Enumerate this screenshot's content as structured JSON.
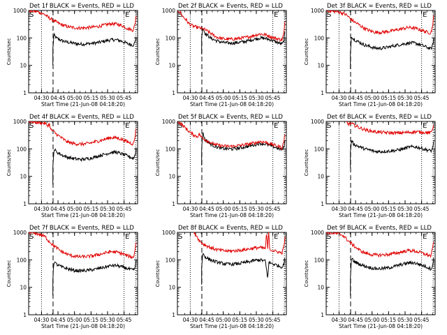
{
  "figure": {
    "xlabel": "Start Time (21-Jun-08 04:18:20)",
    "ylabel": "Counts/sec",
    "x_tick_labels": [
      "04:30",
      "04:45",
      "05:00",
      "05:15",
      "05:30",
      "05:45"
    ],
    "y_tick_labels": [
      "1",
      "10",
      "100",
      "1000"
    ],
    "y_scale": "log",
    "ylim": [
      1,
      1000
    ],
    "xlim_minutes_after_04_18_20": [
      0,
      99
    ],
    "marker_S": "S",
    "marker_E": "E",
    "colors": {
      "events": "#000000",
      "lld": "#e00000"
    }
  },
  "chart_data": [
    {
      "type": "line",
      "title": "Det 1f BLACK = Events, RED = LLD",
      "dotted_lines_min": [
        11.7,
        86.7,
        97.2
      ],
      "dashed_line_min": 22.2,
      "E_marker_min": 87,
      "series": [
        {
          "name": "Events",
          "color": "#000000",
          "x": [
            22,
            23,
            25,
            30,
            35,
            40,
            45,
            50,
            55,
            60,
            65,
            70,
            75,
            80,
            85,
            90,
            95,
            96,
            97,
            98
          ],
          "y": [
            40,
            130,
            100,
            80,
            70,
            65,
            60,
            60,
            62,
            65,
            70,
            78,
            85,
            85,
            75,
            62,
            55,
            60,
            80,
            150
          ]
        },
        {
          "name": "LLD",
          "color": "#e00000",
          "x": [
            0,
            5,
            10,
            15,
            18,
            20,
            22,
            25,
            30,
            35,
            40,
            45,
            50,
            55,
            60,
            65,
            70,
            75,
            80,
            85,
            90,
            95,
            96,
            97,
            98
          ],
          "y": [
            1000,
            950,
            850,
            700,
            550,
            500,
            450,
            380,
            300,
            260,
            240,
            230,
            230,
            240,
            250,
            270,
            300,
            330,
            320,
            280,
            220,
            190,
            250,
            400,
            900
          ]
        }
      ]
    },
    {
      "type": "line",
      "title": "Det 2f BLACK = Events, RED = LLD",
      "dotted_lines_min": [
        11.7,
        86.7,
        97.2
      ],
      "dashed_line_min": 22.2,
      "E_marker_min": 87,
      "series": [
        {
          "name": "Events",
          "color": "#000000",
          "x": [
            22,
            23,
            25,
            30,
            35,
            40,
            45,
            50,
            55,
            60,
            65,
            70,
            75,
            80,
            85,
            90,
            95,
            96,
            97,
            98
          ],
          "y": [
            100,
            250,
            150,
            100,
            80,
            70,
            65,
            65,
            68,
            72,
            80,
            90,
            100,
            95,
            85,
            70,
            60,
            65,
            90,
            200
          ]
        },
        {
          "name": "LLD",
          "color": "#e00000",
          "x": [
            0,
            2,
            5,
            8,
            10,
            12,
            15,
            20,
            25,
            30,
            35,
            40,
            45,
            50,
            55,
            60,
            65,
            70,
            75,
            80,
            85,
            90,
            95,
            96,
            97,
            98
          ],
          "y": [
            1000,
            900,
            600,
            450,
            350,
            300,
            260,
            230,
            200,
            150,
            110,
            95,
            90,
            90,
            95,
            100,
            110,
            125,
            140,
            130,
            110,
            95,
            85,
            110,
            180,
            500
          ]
        }
      ]
    },
    {
      "type": "line",
      "title": "Det 3f BLACK = Events, RED = LLD",
      "dotted_lines_min": [
        11.7,
        86.7,
        97.2
      ],
      "dashed_line_min": 22.2,
      "E_marker_min": 87,
      "series": [
        {
          "name": "Events",
          "color": "#000000",
          "x": [
            22,
            23,
            25,
            30,
            35,
            40,
            45,
            50,
            55,
            60,
            65,
            70,
            75,
            80,
            85,
            90,
            95,
            96,
            97,
            98
          ],
          "y": [
            30,
            120,
            90,
            70,
            55,
            48,
            42,
            42,
            45,
            50,
            55,
            60,
            65,
            65,
            58,
            48,
            40,
            45,
            60,
            130
          ]
        },
        {
          "name": "LLD",
          "color": "#e00000",
          "x": [
            0,
            5,
            10,
            15,
            18,
            20,
            22,
            25,
            30,
            35,
            40,
            45,
            50,
            55,
            60,
            65,
            70,
            75,
            80,
            85,
            90,
            95,
            96,
            97,
            98
          ],
          "y": [
            1000,
            950,
            900,
            800,
            700,
            600,
            500,
            400,
            300,
            220,
            180,
            160,
            160,
            170,
            180,
            200,
            220,
            240,
            230,
            200,
            170,
            150,
            200,
            350,
            800
          ]
        }
      ]
    },
    {
      "type": "line",
      "title": "Det 4f BLACK = Events, RED = LLD",
      "dotted_lines_min": [
        11.7,
        86.7,
        97.2
      ],
      "dashed_line_min": 22.2,
      "E_marker_min": 87,
      "series": [
        {
          "name": "Events",
          "color": "#000000",
          "x": [
            22,
            23,
            25,
            30,
            35,
            40,
            45,
            50,
            55,
            60,
            65,
            70,
            75,
            80,
            85,
            90,
            95,
            96,
            97,
            98
          ],
          "y": [
            20,
            100,
            80,
            60,
            50,
            45,
            42,
            42,
            45,
            50,
            58,
            65,
            75,
            75,
            65,
            55,
            45,
            50,
            70,
            140
          ]
        },
        {
          "name": "LLD",
          "color": "#e00000",
          "x": [
            0,
            5,
            10,
            15,
            17,
            19,
            20,
            22,
            25,
            30,
            35,
            40,
            45,
            50,
            55,
            60,
            65,
            70,
            75,
            80,
            85,
            90,
            95,
            96,
            97,
            98
          ],
          "y": [
            1000,
            950,
            900,
            850,
            700,
            800,
            500,
            450,
            350,
            250,
            180,
            160,
            150,
            150,
            160,
            180,
            200,
            230,
            260,
            250,
            220,
            180,
            150,
            200,
            350,
            700
          ]
        }
      ]
    },
    {
      "type": "line",
      "title": "Det 5f BLACK = Events, RED = LLD",
      "dotted_lines_min": [
        11.7,
        86.7,
        97.2
      ],
      "dashed_line_min": 22.2,
      "E_marker_min": 87,
      "series": [
        {
          "name": "Events",
          "color": "#000000",
          "x": [
            22,
            23,
            25,
            30,
            35,
            40,
            45,
            50,
            55,
            60,
            65,
            70,
            75,
            80,
            85,
            90,
            95,
            96,
            97,
            98
          ],
          "y": [
            100,
            400,
            220,
            150,
            120,
            105,
            100,
            100,
            105,
            115,
            125,
            140,
            160,
            150,
            130,
            110,
            95,
            100,
            130,
            250
          ]
        },
        {
          "name": "LLD",
          "color": "#e00000",
          "x": [
            0,
            2,
            5,
            8,
            10,
            12,
            15,
            18,
            20,
            22,
            25,
            30,
            35,
            40,
            45,
            50,
            55,
            60,
            65,
            70,
            75,
            80,
            85,
            90,
            95,
            96,
            97,
            98
          ],
          "y": [
            1000,
            900,
            700,
            550,
            450,
            380,
            320,
            280,
            350,
            260,
            220,
            170,
            140,
            130,
            125,
            125,
            130,
            140,
            150,
            165,
            185,
            175,
            150,
            130,
            110,
            140,
            220,
            450
          ]
        }
      ]
    },
    {
      "type": "line",
      "title": "Det 6f BLACK = Events, RED = LLD",
      "dotted_lines_min": [
        11.7,
        86.7,
        97.2
      ],
      "dashed_line_min": 22.2,
      "E_marker_min": 87,
      "series": [
        {
          "name": "Events",
          "color": "#000000",
          "x": [
            22,
            23,
            25,
            30,
            35,
            40,
            45,
            50,
            55,
            60,
            65,
            70,
            75,
            80,
            85,
            90,
            95,
            96,
            97,
            98
          ],
          "y": [
            80,
            200,
            150,
            120,
            100,
            90,
            80,
            80,
            82,
            85,
            90,
            100,
            115,
            120,
            110,
            95,
            85,
            90,
            120,
            250
          ]
        },
        {
          "name": "LLD",
          "color": "#e00000",
          "x": [
            17,
            19,
            20,
            22,
            25,
            30,
            35,
            40,
            45,
            50,
            55,
            60,
            65,
            70,
            75,
            80,
            85,
            90,
            95,
            96,
            97,
            98
          ],
          "y": [
            1000,
            900,
            800,
            850,
            750,
            600,
            500,
            450,
            420,
            400,
            390,
            380,
            380,
            390,
            400,
            420,
            410,
            400,
            380,
            450,
            600,
            950
          ]
        }
      ]
    },
    {
      "type": "line",
      "title": "Det 7f BLACK = Events, RED = LLD",
      "dotted_lines_min": [
        11.7,
        86.7,
        97.2
      ],
      "dashed_line_min": 22.2,
      "E_marker_min": 87,
      "series": [
        {
          "name": "Events",
          "color": "#000000",
          "x": [
            22,
            23,
            25,
            30,
            35,
            40,
            45,
            50,
            55,
            60,
            65,
            70,
            75,
            80,
            85,
            90,
            95,
            96,
            97,
            98
          ],
          "y": [
            20,
            90,
            70,
            55,
            48,
            42,
            40,
            40,
            42,
            45,
            50,
            55,
            62,
            62,
            55,
            48,
            42,
            45,
            60,
            120
          ]
        },
        {
          "name": "LLD",
          "color": "#e00000",
          "x": [
            0,
            5,
            10,
            15,
            18,
            20,
            22,
            25,
            30,
            35,
            40,
            45,
            50,
            55,
            60,
            65,
            70,
            75,
            80,
            85,
            90,
            95,
            96,
            97,
            98
          ],
          "y": [
            1000,
            950,
            850,
            700,
            500,
            420,
            350,
            280,
            200,
            160,
            140,
            130,
            130,
            135,
            145,
            160,
            180,
            200,
            190,
            170,
            140,
            120,
            160,
            300,
            600
          ]
        }
      ]
    },
    {
      "type": "line",
      "title": "Det 8f BLACK = Events, RED = LLD",
      "dotted_lines_min": [
        11.7,
        86.7,
        97.2
      ],
      "dashed_line_min": 22.2,
      "E_marker_min": 87,
      "series": [
        {
          "name": "Events",
          "color": "#000000",
          "x": [
            22,
            23,
            25,
            30,
            35,
            40,
            45,
            50,
            55,
            60,
            65,
            70,
            75,
            80,
            82,
            83,
            85,
            90,
            95,
            96,
            97,
            98
          ],
          "y": [
            50,
            180,
            130,
            100,
            85,
            75,
            70,
            70,
            72,
            78,
            85,
            95,
            100,
            90,
            20,
            80,
            75,
            65,
            55,
            60,
            80,
            160
          ]
        },
        {
          "name": "LLD",
          "color": "#e00000",
          "x": [
            15,
            18,
            20,
            22,
            25,
            30,
            35,
            40,
            45,
            50,
            55,
            60,
            65,
            70,
            75,
            80,
            81,
            82,
            83,
            84,
            85,
            90,
            95,
            96,
            97,
            98
          ],
          "y": [
            1000,
            700,
            500,
            420,
            350,
            280,
            240,
            220,
            210,
            210,
            220,
            230,
            250,
            270,
            280,
            260,
            1000,
            250,
            1000,
            240,
            230,
            200,
            180,
            230,
            380,
            700
          ]
        }
      ]
    },
    {
      "type": "line",
      "title": "Det 9f BLACK = Events, RED = LLD",
      "dotted_lines_min": [
        11.7,
        86.7,
        97.2
      ],
      "dashed_line_min": 22.2,
      "E_marker_min": 87,
      "series": [
        {
          "name": "Events",
          "color": "#000000",
          "x": [
            22,
            23,
            25,
            30,
            35,
            40,
            45,
            50,
            55,
            60,
            65,
            70,
            75,
            80,
            85,
            90,
            95,
            96,
            97,
            98
          ],
          "y": [
            20,
            120,
            90,
            70,
            60,
            52,
            48,
            48,
            50,
            55,
            62,
            70,
            78,
            78,
            68,
            58,
            48,
            52,
            70,
            140
          ]
        },
        {
          "name": "LLD",
          "color": "#e00000",
          "x": [
            0,
            5,
            10,
            15,
            18,
            20,
            22,
            25,
            30,
            35,
            40,
            45,
            50,
            55,
            60,
            65,
            70,
            75,
            80,
            85,
            90,
            95,
            96,
            97,
            98
          ],
          "y": [
            1000,
            950,
            900,
            800,
            600,
            500,
            420,
            330,
            230,
            180,
            160,
            150,
            150,
            155,
            165,
            180,
            200,
            220,
            210,
            190,
            160,
            140,
            180,
            320,
            650
          ]
        }
      ]
    }
  ]
}
